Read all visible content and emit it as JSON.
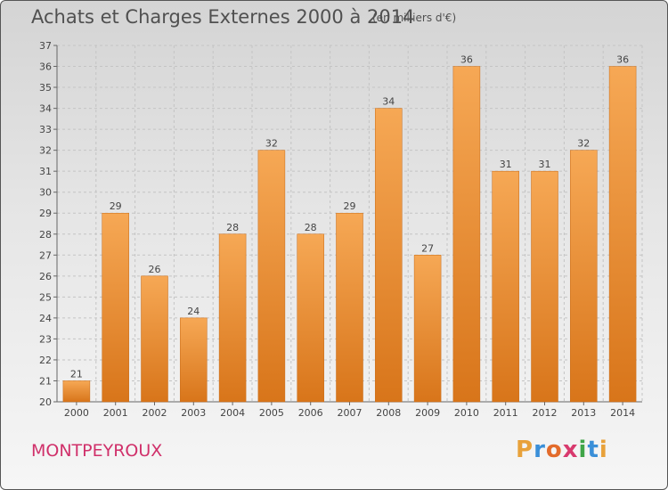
{
  "title": "Achats et Charges Externes 2000 à 2014",
  "subtitle": "(en milliers d'€)",
  "place": "MONTPEYROUX",
  "logo": "Proxiti",
  "colors": {
    "bar_light": "#f6a855",
    "bar_dark": "#d8751a",
    "place": "#d0306a"
  },
  "chart_data": {
    "type": "bar",
    "title": "Achats et Charges Externes 2000 à 2014",
    "subtitle": "(en milliers d'€)",
    "xlabel": "",
    "ylabel": "",
    "ylim": [
      20,
      37
    ],
    "yticks": [
      "20",
      "21",
      "22",
      "23",
      "24",
      "25",
      "26",
      "27",
      "28",
      "29",
      "30",
      "31",
      "32",
      "33",
      "34",
      "35",
      "36",
      "37"
    ],
    "grid": true,
    "categories": [
      "2000",
      "2001",
      "2002",
      "2003",
      "2004",
      "2005",
      "2006",
      "2007",
      "2008",
      "2009",
      "2010",
      "2011",
      "2012",
      "2013",
      "2014"
    ],
    "values": [
      21,
      29,
      26,
      24,
      28,
      32,
      28,
      29,
      34,
      27,
      36,
      31,
      31,
      32,
      36
    ]
  }
}
